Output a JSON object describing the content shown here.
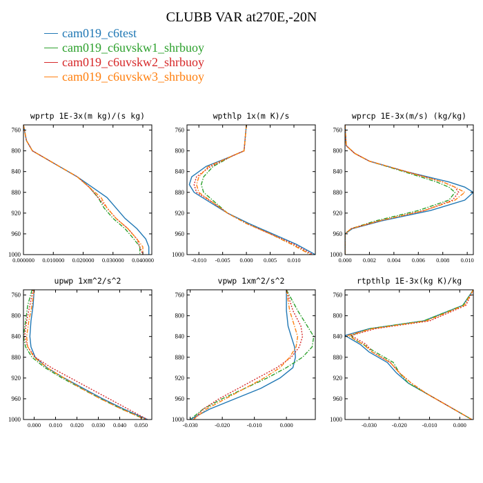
{
  "figure": {
    "title": "CLUBB VAR at270E,-20N"
  },
  "legend": [
    {
      "name": "cam019_c6test",
      "color": "#1f77b4",
      "dash": "solid"
    },
    {
      "name": "cam019_c6uvskw1_shrbuoy",
      "color": "#2ca02c",
      "dash": "dashdot"
    },
    {
      "name": "cam019_c6uvskw2_shrbuoy",
      "color": "#d62728",
      "dash": "dotted"
    },
    {
      "name": "cam019_c6uvskw3_shrbuoy",
      "color": "#ff7f0e",
      "dash": "dashdot"
    }
  ],
  "chart_data": [
    {
      "type": "line",
      "title": "wprtp  1E-3x(m kg)/(s kg)",
      "xlim": [
        0.0,
        0.043
      ],
      "ylim": [
        1000,
        750
      ],
      "y_reversed": true,
      "xticks": [
        0,
        0.01,
        0.02,
        0.03,
        0.04
      ],
      "xticklabels": [
        "0.000000",
        "0.010000",
        "0.020000",
        "0.030000",
        "0.040000"
      ],
      "yticks": [
        760,
        800,
        840,
        880,
        920,
        960,
        1000
      ],
      "y": [
        750,
        780,
        800,
        810,
        830,
        850,
        870,
        890,
        910,
        930,
        950,
        970,
        985,
        1000
      ],
      "series": [
        {
          "values": [
            0.0,
            0.001,
            0.003,
            0.006,
            0.012,
            0.018,
            0.023,
            0.028,
            0.031,
            0.034,
            0.038,
            0.041,
            0.042,
            0.042
          ]
        },
        {
          "values": [
            0.0,
            0.001,
            0.003,
            0.006,
            0.012,
            0.018,
            0.022,
            0.025,
            0.027,
            0.03,
            0.034,
            0.037,
            0.039,
            0.039
          ]
        },
        {
          "values": [
            0.0,
            0.001,
            0.003,
            0.006,
            0.012,
            0.018,
            0.022,
            0.025,
            0.028,
            0.031,
            0.035,
            0.038,
            0.039,
            0.04
          ]
        },
        {
          "values": [
            0.0,
            0.001,
            0.003,
            0.006,
            0.012,
            0.018,
            0.022,
            0.026,
            0.028,
            0.031,
            0.035,
            0.038,
            0.04,
            0.04
          ]
        }
      ]
    },
    {
      "type": "line",
      "title": "wpthlp  1x(m K)/s",
      "xlim": [
        -0.0125,
        0.0145
      ],
      "ylim": [
        1000,
        750
      ],
      "y_reversed": true,
      "xticks": [
        -0.01,
        -0.005,
        0,
        0.005,
        0.01
      ],
      "xticklabels": [
        "-0.010",
        "-0.005",
        "0.000",
        "0.005",
        "0.010"
      ],
      "yticks": [
        760,
        800,
        840,
        880,
        920,
        960,
        1000
      ],
      "y": [
        750,
        800,
        810,
        830,
        850,
        865,
        880,
        900,
        920,
        940,
        960,
        980,
        1000
      ],
      "series": [
        {
          "values": [
            0.0,
            -0.0005,
            -0.003,
            -0.0085,
            -0.0115,
            -0.012,
            -0.011,
            -0.0075,
            -0.004,
            0.0005,
            0.0055,
            0.0105,
            0.0145
          ]
        },
        {
          "values": [
            0.0,
            -0.0005,
            -0.003,
            -0.007,
            -0.009,
            -0.0095,
            -0.009,
            -0.0065,
            -0.004,
            0.0,
            0.005,
            0.0095,
            0.0135
          ]
        },
        {
          "values": [
            0.0,
            -0.0005,
            -0.003,
            -0.0075,
            -0.0105,
            -0.011,
            -0.0105,
            -0.007,
            -0.004,
            0.0,
            0.005,
            0.01,
            0.014
          ]
        },
        {
          "values": [
            0.0,
            -0.0005,
            -0.003,
            -0.008,
            -0.01,
            -0.0105,
            -0.01,
            -0.007,
            -0.004,
            0.0,
            0.005,
            0.0095,
            0.0135
          ]
        }
      ]
    },
    {
      "type": "line",
      "title": "wprcp  1E-3x(m/s) (kg/kg)",
      "xlim": [
        0.0,
        0.0105
      ],
      "ylim": [
        1000,
        750
      ],
      "y_reversed": true,
      "xticks": [
        0,
        0.002,
        0.004,
        0.006,
        0.008,
        0.01
      ],
      "xticklabels": [
        "0.000",
        "0.002",
        "0.004",
        "0.006",
        "0.008",
        "0.010"
      ],
      "yticks": [
        760,
        800,
        840,
        880,
        920,
        960,
        1000
      ],
      "y": [
        750,
        790,
        805,
        820,
        840,
        860,
        870,
        880,
        895,
        915,
        935,
        950,
        960,
        1000
      ],
      "series": [
        {
          "values": [
            0.0,
            0.0001,
            0.0008,
            0.002,
            0.005,
            0.0085,
            0.0098,
            0.0105,
            0.0098,
            0.007,
            0.003,
            0.0006,
            0.0,
            0.0
          ]
        },
        {
          "values": [
            0.0,
            0.0001,
            0.0008,
            0.002,
            0.0048,
            0.0075,
            0.0085,
            0.009,
            0.0085,
            0.006,
            0.0025,
            0.0005,
            0.0,
            0.0
          ]
        },
        {
          "values": [
            0.0,
            0.0001,
            0.0008,
            0.002,
            0.005,
            0.008,
            0.009,
            0.0093,
            0.0088,
            0.0065,
            0.0028,
            0.0005,
            0.0,
            0.0
          ]
        },
        {
          "values": [
            0.0,
            0.0001,
            0.0008,
            0.002,
            0.005,
            0.008,
            0.009,
            0.0098,
            0.009,
            0.0065,
            0.0028,
            0.0005,
            0.0,
            0.0
          ]
        }
      ]
    },
    {
      "type": "line",
      "title": "upwp  1xm^2/s^2",
      "xlim": [
        -0.005,
        0.055
      ],
      "ylim": [
        1000,
        750
      ],
      "y_reversed": true,
      "xticks": [
        0,
        0.01,
        0.02,
        0.03,
        0.04,
        0.05
      ],
      "xticklabels": [
        "0.000",
        "0.010",
        "0.020",
        "0.030",
        "0.040",
        "0.050"
      ],
      "yticks": [
        760,
        800,
        840,
        880,
        920,
        960,
        1000
      ],
      "y": [
        750,
        780,
        810,
        840,
        860,
        880,
        900,
        920,
        940,
        960,
        980,
        1000
      ],
      "series": [
        {
          "values": [
            0.0,
            -0.0005,
            -0.0015,
            -0.002,
            -0.0015,
            0.0005,
            0.006,
            0.014,
            0.023,
            0.032,
            0.042,
            0.053
          ]
        },
        {
          "values": [
            -0.001,
            -0.003,
            -0.004,
            -0.005,
            -0.004,
            -0.001,
            0.005,
            0.013,
            0.022,
            0.031,
            0.041,
            0.052
          ]
        },
        {
          "values": [
            -0.0005,
            -0.002,
            -0.0035,
            -0.0045,
            -0.003,
            0.0005,
            0.008,
            0.017,
            0.026,
            0.035,
            0.044,
            0.053
          ]
        },
        {
          "values": [
            0.0,
            -0.001,
            -0.0025,
            -0.0035,
            -0.003,
            0.0,
            0.006,
            0.014,
            0.022,
            0.031,
            0.041,
            0.052
          ]
        }
      ]
    },
    {
      "type": "line",
      "title": "vpwp  1xm^2/s^2",
      "xlim": [
        -0.031,
        0.009
      ],
      "ylim": [
        1000,
        750
      ],
      "y_reversed": true,
      "xticks": [
        -0.03,
        -0.02,
        -0.01,
        0
      ],
      "xticklabels": [
        "-0.030",
        "-0.020",
        "-0.010",
        "0.000"
      ],
      "yticks": [
        760,
        800,
        840,
        880,
        920,
        960,
        1000
      ],
      "y": [
        750,
        790,
        820,
        840,
        860,
        880,
        900,
        920,
        940,
        960,
        980,
        1000
      ],
      "series": [
        {
          "values": [
            0.0,
            0.0,
            0.0005,
            0.0015,
            0.0025,
            0.0028,
            0.002,
            -0.002,
            -0.008,
            -0.016,
            -0.024,
            -0.03
          ]
        },
        {
          "values": [
            0.0,
            0.0035,
            0.0065,
            0.0085,
            0.008,
            0.005,
            0.0,
            -0.006,
            -0.013,
            -0.02,
            -0.026,
            -0.03
          ]
        },
        {
          "values": [
            0.0,
            0.002,
            0.0045,
            0.005,
            0.004,
            0.0015,
            -0.003,
            -0.009,
            -0.015,
            -0.021,
            -0.026,
            -0.029
          ]
        },
        {
          "values": [
            0.0,
            0.001,
            0.0025,
            0.0035,
            0.003,
            0.001,
            -0.002,
            -0.007,
            -0.013,
            -0.019,
            -0.025,
            -0.029
          ]
        }
      ]
    },
    {
      "type": "line",
      "title": "rtpthlp  1E-3x(kg K)/kg",
      "xlim": [
        -0.038,
        0.0045
      ],
      "ylim": [
        1000,
        750
      ],
      "y_reversed": true,
      "xticks": [
        -0.03,
        -0.02,
        -0.01,
        0
      ],
      "xticklabels": [
        "-0.030",
        "-0.020",
        "-0.010",
        "0.000"
      ],
      "yticks": [
        760,
        800,
        840,
        880,
        920,
        960,
        1000
      ],
      "y": [
        750,
        780,
        810,
        825,
        838,
        845,
        855,
        870,
        890,
        910,
        930,
        950,
        970,
        990,
        1000
      ],
      "series": [
        {
          "values": [
            0.0045,
            0.001,
            -0.012,
            -0.03,
            -0.038,
            -0.036,
            -0.033,
            -0.03,
            -0.024,
            -0.021,
            -0.017,
            -0.011,
            -0.005,
            0.001,
            0.004
          ]
        },
        {
          "values": [
            0.0045,
            0.001,
            -0.012,
            -0.03,
            -0.036,
            -0.035,
            -0.032,
            -0.028,
            -0.022,
            -0.02,
            -0.017,
            -0.011,
            -0.005,
            0.001,
            0.004
          ]
        },
        {
          "values": [
            0.0045,
            0.002,
            -0.01,
            -0.028,
            -0.036,
            -0.034,
            -0.031,
            -0.029,
            -0.023,
            -0.02,
            -0.016,
            -0.011,
            -0.005,
            0.001,
            0.004
          ]
        },
        {
          "values": [
            0.0045,
            0.0015,
            -0.011,
            -0.029,
            -0.037,
            -0.035,
            -0.032,
            -0.029,
            -0.023,
            -0.02,
            -0.016,
            -0.011,
            -0.005,
            0.001,
            0.004
          ]
        }
      ]
    }
  ]
}
